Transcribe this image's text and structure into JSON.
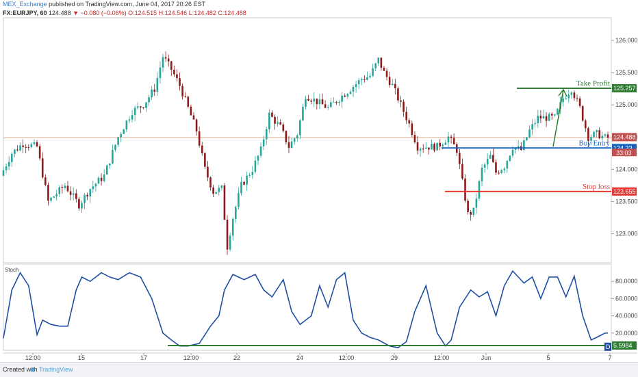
{
  "header": {
    "publisher": "MEX_Exchange",
    "published_text": "published on TradingView.com, June 04, 2017 20:26 EST",
    "symbol": "FX:EURJPY, 60",
    "last": "124.488",
    "change": "−0.080 (−0.06%)",
    "ohlc": "O:124.515 H:124.546 L:124.482 C:124.488"
  },
  "footer": {
    "created_with": "Created with",
    "brand": "TradingView"
  },
  "colors": {
    "up": "#26a69a",
    "down": "#8b1a1a",
    "take_profit": "#2e7d32",
    "buy_entry": "#1565c0",
    "stop_loss": "#e53935",
    "stoch": "#1f4fa3",
    "price_line": "#e8a48a"
  },
  "chart_data": [
    {
      "type": "candlestick",
      "symbol": "FX:EURJPY",
      "interval": "60",
      "y_ticks": [
        123.0,
        123.5,
        124.0,
        124.5,
        125.0,
        125.5,
        126.0
      ],
      "y_tick_labels": [
        "123.000",
        "123.500",
        "124.000",
        "124.500",
        "125.000",
        "125.500",
        "126.000"
      ],
      "ylim": [
        122.55,
        126.35
      ],
      "x_ticks": [
        "12:00",
        "15",
        "17",
        "12:00",
        "22",
        "24",
        "12:00",
        "29",
        "12:00",
        "Jun",
        "5",
        "7"
      ],
      "price_path": [
        [
          0,
          123.9
        ],
        [
          4,
          124.25
        ],
        [
          8,
          124.4
        ],
        [
          13,
          124.35
        ],
        [
          17,
          123.5
        ],
        [
          23,
          123.75
        ],
        [
          28,
          123.45
        ],
        [
          32,
          123.7
        ],
        [
          37,
          123.9
        ],
        [
          42,
          124.5
        ],
        [
          47,
          124.9
        ],
        [
          51,
          125.0
        ],
        [
          55,
          125.25
        ],
        [
          58,
          125.75
        ],
        [
          61,
          125.55
        ],
        [
          64,
          125.3
        ],
        [
          67,
          124.95
        ],
        [
          70,
          124.6
        ],
        [
          73,
          124.0
        ],
        [
          76,
          123.65
        ],
        [
          79,
          123.7
        ],
        [
          81,
          122.8
        ],
        [
          83,
          123.25
        ],
        [
          86,
          123.75
        ],
        [
          90,
          124.0
        ],
        [
          93,
          124.3
        ],
        [
          96,
          124.85
        ],
        [
          100,
          124.65
        ],
        [
          103,
          124.35
        ],
        [
          106,
          124.55
        ],
        [
          109,
          125.15
        ],
        [
          113,
          125.05
        ],
        [
          117,
          124.95
        ],
        [
          121,
          125.1
        ],
        [
          125,
          125.25
        ],
        [
          129,
          125.4
        ],
        [
          132,
          125.45
        ],
        [
          135,
          125.7
        ],
        [
          137,
          125.5
        ],
        [
          140,
          125.3
        ],
        [
          143,
          125.0
        ],
        [
          146,
          124.7
        ],
        [
          149,
          124.35
        ],
        [
          152,
          124.35
        ],
        [
          156,
          124.35
        ],
        [
          160,
          124.5
        ],
        [
          163,
          124.3
        ],
        [
          165,
          123.8
        ],
        [
          167,
          123.3
        ],
        [
          169,
          123.35
        ],
        [
          172,
          124.0
        ],
        [
          175,
          124.2
        ],
        [
          177,
          123.95
        ],
        [
          180,
          124.05
        ],
        [
          183,
          124.35
        ],
        [
          186,
          124.3
        ],
        [
          189,
          124.6
        ],
        [
          192,
          124.8
        ],
        [
          195,
          124.8
        ],
        [
          198,
          124.8
        ],
        [
          201,
          125.1
        ],
        [
          204,
          125.25
        ],
        [
          207,
          124.95
        ],
        [
          210,
          124.5
        ],
        [
          213,
          124.55
        ],
        [
          216,
          124.49
        ]
      ],
      "levels": [
        {
          "name": "Take Profit",
          "value": 125.257,
          "label": "125.257"
        },
        {
          "name": "Buy Entry",
          "value": 124.33,
          "label": "124.33"
        },
        {
          "name": "Stop loss",
          "value": 123.655,
          "label": "123.655"
        }
      ],
      "current_price": {
        "value": 124.488,
        "label": "124.488",
        "countdown": "33:03"
      },
      "annotation": "arrow from Buy Entry up to Take Profit"
    },
    {
      "type": "line",
      "title": "Stoch",
      "y_ticks": [
        20,
        40,
        60,
        80
      ],
      "y_tick_labels": [
        "20.0000",
        "40.0000",
        "60.0000",
        "80.0000"
      ],
      "ylim": [
        0,
        100
      ],
      "series": [
        {
          "x": [
            0,
            3,
            6,
            9,
            12,
            14,
            17,
            20,
            23,
            26,
            28,
            31,
            35,
            38,
            41,
            45,
            49,
            53,
            57,
            60,
            63,
            66,
            70,
            74,
            77,
            79,
            82,
            86,
            90,
            93,
            96,
            100,
            103,
            106,
            110,
            113,
            116,
            119,
            122,
            125,
            128,
            131,
            134,
            138,
            141,
            144,
            147,
            151,
            155,
            158,
            160,
            163,
            167,
            170,
            173,
            176,
            179,
            182,
            186,
            189,
            192,
            195,
            198,
            201,
            204,
            207,
            210,
            212,
            215,
            216
          ],
          "values": [
            14,
            70,
            90,
            75,
            18,
            35,
            30,
            28,
            28,
            70,
            85,
            80,
            90,
            85,
            82,
            90,
            85,
            60,
            20,
            12,
            5,
            5,
            8,
            28,
            40,
            70,
            88,
            82,
            88,
            70,
            62,
            82,
            45,
            30,
            40,
            75,
            50,
            82,
            90,
            35,
            20,
            15,
            12,
            5,
            3,
            10,
            45,
            75,
            20,
            5,
            12,
            50,
            70,
            62,
            68,
            40,
            75,
            92,
            78,
            85,
            60,
            85,
            85,
            62,
            86,
            40,
            12,
            15,
            20,
            20
          ]
        }
      ],
      "level_line": {
        "value": 5.5984,
        "label": "5.5984"
      },
      "current_label": "D"
    }
  ]
}
